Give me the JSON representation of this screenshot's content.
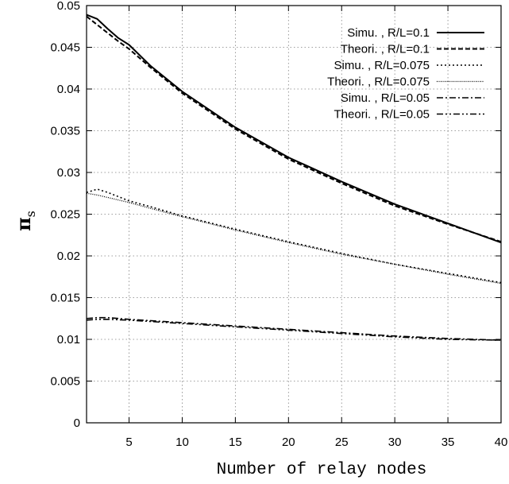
{
  "chart_data": {
    "type": "line",
    "xlabel": "Number of relay nodes",
    "ylabel": "π",
    "ylabel_subscript": "s",
    "xlim": [
      1,
      40
    ],
    "ylim": [
      0,
      0.05
    ],
    "xticks": [
      5,
      10,
      15,
      20,
      25,
      30,
      35,
      40
    ],
    "yticks": [
      0,
      0.005,
      0.01,
      0.015,
      0.02,
      0.025,
      0.03,
      0.035,
      0.04,
      0.045,
      0.05
    ],
    "ytick_labels": [
      "0",
      "0.005",
      "0.01",
      "0.015",
      "0.02",
      "0.025",
      "0.03",
      "0.035",
      "0.04",
      "0.045",
      "0.05"
    ],
    "grid": true,
    "legend_position": "top-right",
    "series": [
      {
        "name": "Simu. , R/L=0.1",
        "style": "solid",
        "x": [
          1,
          2,
          3,
          4,
          5,
          7,
          10,
          15,
          20,
          25,
          30,
          35,
          40
        ],
        "y": [
          0.0489,
          0.0484,
          0.0472,
          0.0461,
          0.0453,
          0.0428,
          0.0397,
          0.0354,
          0.0318,
          0.0289,
          0.0262,
          0.0239,
          0.0216
        ]
      },
      {
        "name": "Theori. , R/L=0.1",
        "style": "dashed",
        "x": [
          1,
          2,
          3,
          4,
          5,
          7,
          10,
          15,
          20,
          25,
          30,
          35,
          40
        ],
        "y": [
          0.0487,
          0.0477,
          0.0467,
          0.0457,
          0.0448,
          0.0426,
          0.0395,
          0.0352,
          0.0316,
          0.0287,
          0.026,
          0.0238,
          0.0217
        ]
      },
      {
        "name": "Simu. , R/L=0.075",
        "style": "dotted",
        "x": [
          1,
          2,
          3,
          4,
          5,
          7,
          10,
          15,
          20,
          25,
          30,
          35,
          40
        ],
        "y": [
          0.0276,
          0.028,
          0.0276,
          0.0271,
          0.0266,
          0.0259,
          0.0248,
          0.0232,
          0.0217,
          0.0203,
          0.019,
          0.0179,
          0.0168
        ]
      },
      {
        "name": "Theori. , R/L=0.075",
        "style": "fine-dotted",
        "x": [
          1,
          2,
          3,
          4,
          5,
          7,
          10,
          15,
          20,
          25,
          30,
          35,
          40
        ],
        "y": [
          0.0275,
          0.0273,
          0.027,
          0.0267,
          0.0264,
          0.0257,
          0.0247,
          0.0231,
          0.0216,
          0.0202,
          0.019,
          0.0178,
          0.0167
        ]
      },
      {
        "name": "Simu. , R/L=0.05",
        "style": "dash-dot",
        "x": [
          1,
          2,
          3,
          5,
          10,
          15,
          20,
          25,
          30,
          35,
          40
        ],
        "y": [
          0.0125,
          0.0126,
          0.0126,
          0.0124,
          0.012,
          0.0116,
          0.0112,
          0.0108,
          0.0104,
          0.0101,
          0.0099
        ]
      },
      {
        "name": "Theori. , R/L=0.05",
        "style": "dash-dot-dot",
        "x": [
          1,
          2,
          3,
          5,
          10,
          15,
          20,
          25,
          30,
          35,
          40
        ],
        "y": [
          0.0123,
          0.0124,
          0.0124,
          0.0123,
          0.0119,
          0.0115,
          0.0111,
          0.0107,
          0.0103,
          0.01,
          0.0099
        ]
      }
    ]
  }
}
